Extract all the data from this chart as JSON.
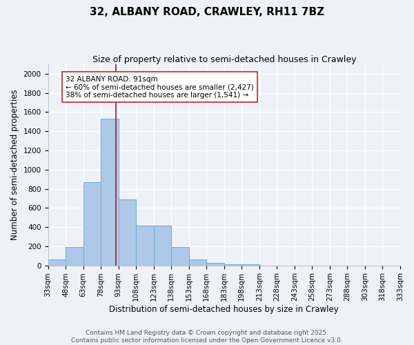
{
  "title": "32, ALBANY ROAD, CRAWLEY, RH11 7BZ",
  "subtitle": "Size of property relative to semi-detached houses in Crawley",
  "xlabel": "Distribution of semi-detached houses by size in Crawley",
  "ylabel": "Number of semi-detached properties",
  "bin_labels": [
    "33sqm",
    "48sqm",
    "63sqm",
    "78sqm",
    "93sqm",
    "108sqm",
    "123sqm",
    "138sqm",
    "153sqm",
    "168sqm",
    "183sqm",
    "198sqm",
    "213sqm",
    "228sqm",
    "243sqm",
    "258sqm",
    "273sqm",
    "288sqm",
    "303sqm",
    "318sqm",
    "333sqm"
  ],
  "bin_edges": [
    33,
    48,
    63,
    78,
    93,
    108,
    123,
    138,
    153,
    168,
    183,
    198,
    213,
    228,
    243,
    258,
    273,
    288,
    303,
    318,
    333
  ],
  "bar_values": [
    65,
    195,
    870,
    1530,
    685,
    415,
    415,
    195,
    60,
    25,
    15,
    15,
    0,
    0,
    0,
    0,
    0,
    0,
    0,
    0
  ],
  "bar_color": "#aec9e8",
  "bar_edgecolor": "#6aadd5",
  "subject_value": 91,
  "subject_line_color": "#9b1c1c",
  "annotation_line1": "32 ALBANY ROAD: 91sqm",
  "annotation_line2": "← 60% of semi-detached houses are smaller (2,427)",
  "annotation_line3": "38% of semi-detached houses are larger (1,541) →",
  "annotation_box_color": "#ffffff",
  "annotation_box_edgecolor": "#cc2222",
  "ylim": [
    0,
    2100
  ],
  "yticks": [
    0,
    200,
    400,
    600,
    800,
    1000,
    1200,
    1400,
    1600,
    1800,
    2000
  ],
  "background_color": "#eef2f8",
  "grid_color": "#ffffff",
  "footer_line1": "Contains HM Land Registry data © Crown copyright and database right 2025.",
  "footer_line2": "Contains public sector information licensed under the Open Government Licence v3.0.",
  "title_fontsize": 11,
  "subtitle_fontsize": 9,
  "axis_label_fontsize": 8.5,
  "tick_fontsize": 7.5,
  "annotation_fontsize": 7.5,
  "footer_fontsize": 6.5
}
